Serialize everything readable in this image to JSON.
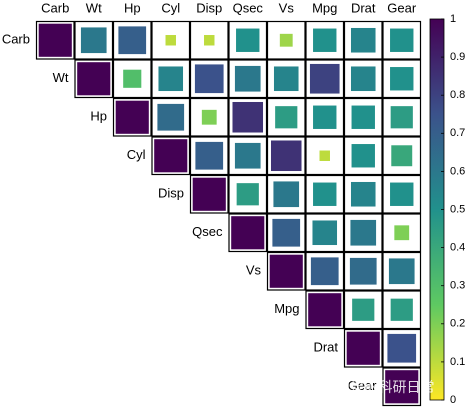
{
  "chart_data": {
    "type": "corrplot",
    "variables": [
      "Carb",
      "Wt",
      "Hp",
      "Cyl",
      "Disp",
      "Qsec",
      "Vs",
      "Mpg",
      "Drat",
      "Gear"
    ],
    "matrix": [
      [
        1,
        0.6,
        0.7,
        0.1,
        0.1,
        0.5,
        0.15,
        0.5,
        0.55,
        0.5
      ],
      [
        null,
        1,
        0.3,
        0.55,
        0.75,
        0.6,
        0.55,
        0.8,
        0.55,
        0.5
      ],
      [
        null,
        null,
        1,
        0.65,
        0.2,
        0.85,
        0.45,
        0.5,
        0.5,
        0.45
      ],
      [
        null,
        null,
        null,
        1,
        0.7,
        0.6,
        0.85,
        0.1,
        0.5,
        0.4
      ],
      [
        null,
        null,
        null,
        null,
        1,
        0.45,
        0.6,
        0.5,
        0.55,
        0.5
      ],
      [
        null,
        null,
        null,
        null,
        null,
        1,
        0.7,
        0.55,
        0.6,
        0.2
      ],
      [
        null,
        null,
        null,
        null,
        null,
        null,
        1,
        0.7,
        0.65,
        0.6
      ],
      [
        null,
        null,
        null,
        null,
        null,
        null,
        null,
        1,
        0.45,
        0.45
      ],
      [
        null,
        null,
        null,
        null,
        null,
        null,
        null,
        null,
        1,
        0.75
      ],
      [
        null,
        null,
        null,
        null,
        null,
        null,
        null,
        null,
        null,
        1
      ]
    ],
    "colormap": [
      "#fde725",
      "#5ec962",
      "#21918c",
      "#3b528b",
      "#440154"
    ],
    "clim": [
      0,
      1
    ],
    "cticks": [
      0,
      0.1,
      0.2,
      0.3,
      0.4,
      0.5,
      0.6,
      0.7,
      0.8,
      0.9,
      1
    ],
    "watermark": "知乎 @阿昆的科研日常"
  }
}
